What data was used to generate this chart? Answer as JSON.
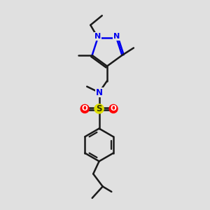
{
  "background_color": "#e0e0e0",
  "line_color": "#1a1a1a",
  "nitrogen_color": "#0000ee",
  "sulfur_color": "#dddd00",
  "oxygen_color": "#ff0000",
  "line_width": 1.8,
  "figsize": [
    3.0,
    3.0
  ],
  "dpi": 100,
  "xlim": [
    0,
    10
  ],
  "ylim": [
    0,
    10
  ]
}
